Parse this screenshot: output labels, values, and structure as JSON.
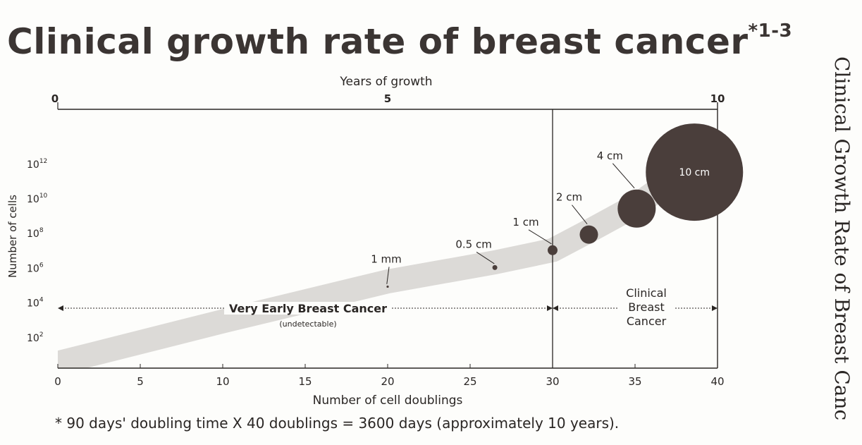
{
  "page_title": "Clinical growth rate of breast cancer",
  "page_title_sup": "*1-3",
  "side_title": "Clinical Growth Rate of Breast Canc",
  "footnote": "* 90 days' doubling time X 40 doublings = 3600 days (approximately 10 years).",
  "colors": {
    "band": "#dcdad7",
    "tumor": "#4a3e3b",
    "axis": "#2a2624"
  },
  "chart_data": {
    "type": "area",
    "title": "Clinical growth rate of breast cancer",
    "xlabel": "Number of cell doublings",
    "ylabel": "Number of cells",
    "top_axis_label": "Years of growth",
    "xlim": [
      0,
      40
    ],
    "x_ticks": [
      0,
      5,
      10,
      15,
      20,
      25,
      30,
      35,
      40
    ],
    "top_axis_ticks": [
      {
        "doublings": 0,
        "label": "0"
      },
      {
        "doublings": 20,
        "label": "5"
      },
      {
        "doublings": 40,
        "label": "10"
      }
    ],
    "y_ticks": [
      {
        "exp": 2,
        "label": "10",
        "sup": "2"
      },
      {
        "exp": 4,
        "label": "10",
        "sup": "4"
      },
      {
        "exp": 6,
        "label": "10",
        "sup": "6"
      },
      {
        "exp": 8,
        "label": "10",
        "sup": "8"
      },
      {
        "exp": 10,
        "label": "10",
        "sup": "10"
      },
      {
        "exp": 12,
        "label": "10",
        "sup": "12"
      }
    ],
    "divider_at": 30,
    "growth_band": [
      [
        0,
        0.5
      ],
      [
        10,
        2.9
      ],
      [
        20,
        5.2
      ],
      [
        26.5,
        6.3
      ],
      [
        30,
        7.0
      ],
      [
        32.2,
        8.1
      ],
      [
        35.1,
        9.6
      ],
      [
        38.6,
        12.0
      ]
    ],
    "tumors": [
      {
        "label": "1 mm",
        "doublings": 20,
        "log_cells": 4.9
      },
      {
        "label": "0.5 cm",
        "doublings": 26.5,
        "log_cells": 6.0
      },
      {
        "label": "1 cm",
        "doublings": 30,
        "log_cells": 7.0
      },
      {
        "label": "2 cm",
        "doublings": 32.2,
        "log_cells": 7.9
      },
      {
        "label": "4 cm",
        "doublings": 35.1,
        "log_cells": 9.4
      },
      {
        "label": "10 cm",
        "doublings": 38.6,
        "log_cells": 11.5
      }
    ],
    "regions": [
      {
        "label": "Very Early Breast Cancer",
        "sublabel": "(undetectable)",
        "from": 0,
        "to": 30
      },
      {
        "label_lines": [
          "Clinical",
          "Breast",
          "Cancer"
        ],
        "from": 30,
        "to": 40
      }
    ]
  }
}
